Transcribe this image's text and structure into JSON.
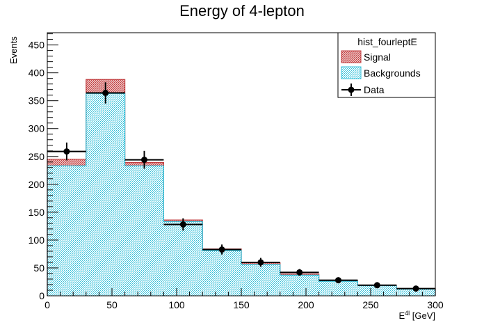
{
  "chart_data": {
    "type": "bar",
    "title": "Energy of 4-lepton",
    "xlabel": "E",
    "xlabel_sup": "4l",
    "xlabel_unit": " [GeV]",
    "ylabel": "Events",
    "xlim": [
      0,
      300
    ],
    "ylim": [
      0,
      472
    ],
    "xticks": [
      0,
      50,
      100,
      150,
      200,
      250,
      300
    ],
    "yticks": [
      0,
      50,
      100,
      150,
      200,
      250,
      300,
      350,
      400,
      450
    ],
    "bin_edges": [
      0,
      30,
      60,
      90,
      120,
      150,
      180,
      210,
      240,
      270,
      300
    ],
    "series": [
      {
        "name": "Backgrounds",
        "kind": "stack",
        "values": [
          233,
          363,
          233,
          133,
          81,
          56,
          37,
          26,
          18,
          12
        ]
      },
      {
        "name": "Signal",
        "kind": "stack",
        "values": [
          12,
          25,
          6,
          3,
          3,
          3,
          2,
          1,
          1,
          1
        ]
      },
      {
        "name": "Data",
        "kind": "points",
        "values": [
          259,
          364,
          244,
          128,
          83,
          60,
          42,
          28,
          19,
          13
        ],
        "errors": [
          16,
          19,
          16,
          11,
          9,
          8,
          6,
          5,
          4,
          4
        ]
      }
    ],
    "legend": {
      "title": "hist_fourleptE",
      "position": "top-right",
      "entries": [
        "Signal",
        "Backgrounds",
        "Data"
      ]
    },
    "colors": {
      "signal": "#c0393b",
      "background": "#2fbfd9",
      "data": "#000000"
    },
    "grid": false
  }
}
